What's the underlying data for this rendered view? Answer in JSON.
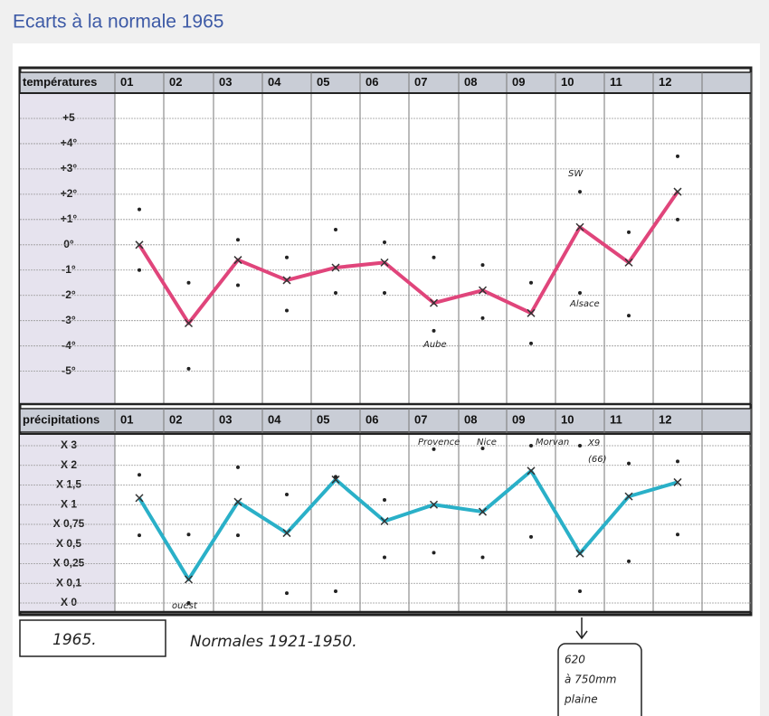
{
  "title": "Ecarts à la normale 1965",
  "chart_data": [
    {
      "type": "line",
      "axis_label": "températures",
      "categories": [
        "01",
        "02",
        "03",
        "04",
        "05",
        "06",
        "07",
        "08",
        "09",
        "10",
        "11",
        "12"
      ],
      "ylim": [
        -6.3,
        6
      ],
      "yticks": [
        {
          "value": 5,
          "label": "+5"
        },
        {
          "value": 4,
          "label": "+4°"
        },
        {
          "value": 3,
          "label": "+3°"
        },
        {
          "value": 2,
          "label": "+2°"
        },
        {
          "value": 1,
          "label": "+1°"
        },
        {
          "value": 0,
          "label": "0°"
        },
        {
          "value": -1,
          "label": "-1°"
        },
        {
          "value": -2,
          "label": "-2°"
        },
        {
          "value": -3,
          "label": "-3°"
        },
        {
          "value": -4,
          "label": "-4°"
        },
        {
          "value": -5,
          "label": "-5°"
        }
      ],
      "grid": true,
      "series": [
        {
          "color": "#e0457b",
          "values": [
            0,
            -3.1,
            -0.6,
            -1.4,
            -0.9,
            -0.7,
            -2.3,
            -1.8,
            -2.7,
            0.7,
            -0.7,
            2.1
          ]
        },
        {
          "color": "#222222",
          "values": [
            1.4,
            -1.5,
            0.2,
            -0.5,
            0.6,
            0.1,
            -0.5,
            -0.8,
            -1.5,
            2.1,
            0.5,
            3.5
          ]
        },
        {
          "color": "#222222",
          "values": [
            -1,
            -4.9,
            -1.6,
            -2.6,
            -1.9,
            -1.9,
            -3.4,
            -2.9,
            -3.9,
            -1.9,
            -2.8,
            1.0
          ]
        }
      ],
      "annotations": [
        "SW",
        "Alsace",
        "Aube"
      ]
    },
    {
      "type": "line",
      "axis_label": "précipitations",
      "categories": [
        "01",
        "02",
        "03",
        "04",
        "05",
        "06",
        "07",
        "08",
        "09",
        "10",
        "11",
        "12"
      ],
      "yticks": [
        {
          "value": 3,
          "label": "X 3"
        },
        {
          "value": 2,
          "label": "X 2"
        },
        {
          "value": 1.5,
          "label": "X 1,5"
        },
        {
          "value": 1,
          "label": "X 1"
        },
        {
          "value": 0.75,
          "label": "X 0,75"
        },
        {
          "value": 0.5,
          "label": "X 0,5"
        },
        {
          "value": 0.25,
          "label": "X 0,25"
        },
        {
          "value": 0.1,
          "label": "X 0,1"
        },
        {
          "value": 0,
          "label": "X 0"
        }
      ],
      "grid": true,
      "series": [
        {
          "color": "#2ab0c8",
          "values": [
            1.17,
            0.13,
            1.07,
            0.64,
            1.64,
            0.79,
            1.0,
            0.91,
            1.86,
            0.38,
            1.21,
            1.57
          ]
        },
        {
          "color": "#222222",
          "values": [
            1.76,
            0.62,
            1.95,
            1.26,
            1.71,
            1.12,
            2.82,
            2.86,
            3.0,
            3.0,
            2.1,
            2.2
          ]
        },
        {
          "color": "#222222",
          "values": [
            0.61,
            0,
            0.61,
            0.05,
            0.06,
            0.33,
            0.39,
            0.33,
            0.59,
            0.06,
            0.28,
            0.62
          ]
        }
      ],
      "annotations": [
        "Provence",
        "Nice",
        "Morvan",
        "X9",
        "(66)",
        "ouest"
      ]
    }
  ],
  "notes": [
    "1965.",
    "Normales 1921-1950."
  ],
  "box_note": [
    "620",
    "à 750mm",
    "plaine"
  ]
}
